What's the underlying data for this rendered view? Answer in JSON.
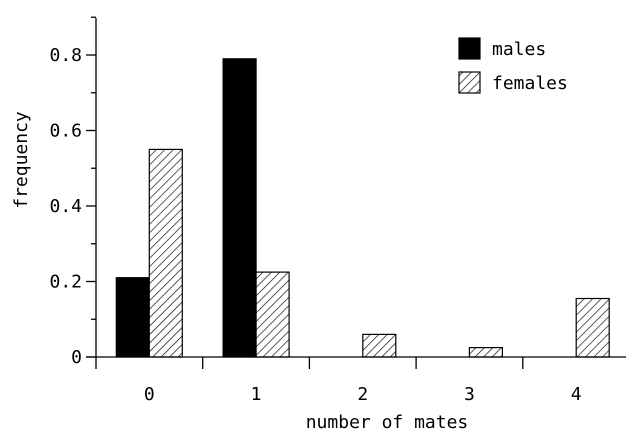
{
  "chart_data": {
    "type": "bar",
    "xlabel": "number of mates",
    "ylabel": "frequency",
    "categories": [
      "0",
      "1",
      "2",
      "3",
      "4"
    ],
    "ylim": [
      0,
      0.95
    ],
    "yticks_major": [
      0,
      0.2,
      0.4,
      0.6,
      0.8
    ],
    "ytick_labels": [
      "0",
      "0.2",
      "0.4",
      "0.6",
      "0.8"
    ],
    "yticks_minor": [
      0.1,
      0.3,
      0.5,
      0.7,
      0.9
    ],
    "grid": false,
    "legend_placement": "top-right",
    "series": [
      {
        "name": "males",
        "values": [
          0.21,
          0.79,
          0,
          0,
          0
        ],
        "fill": "solid",
        "color": "#000000"
      },
      {
        "name": "females",
        "values": [
          0.55,
          0.225,
          0.06,
          0.025,
          0.155
        ],
        "fill": "hatched",
        "color": "#000000"
      }
    ]
  }
}
